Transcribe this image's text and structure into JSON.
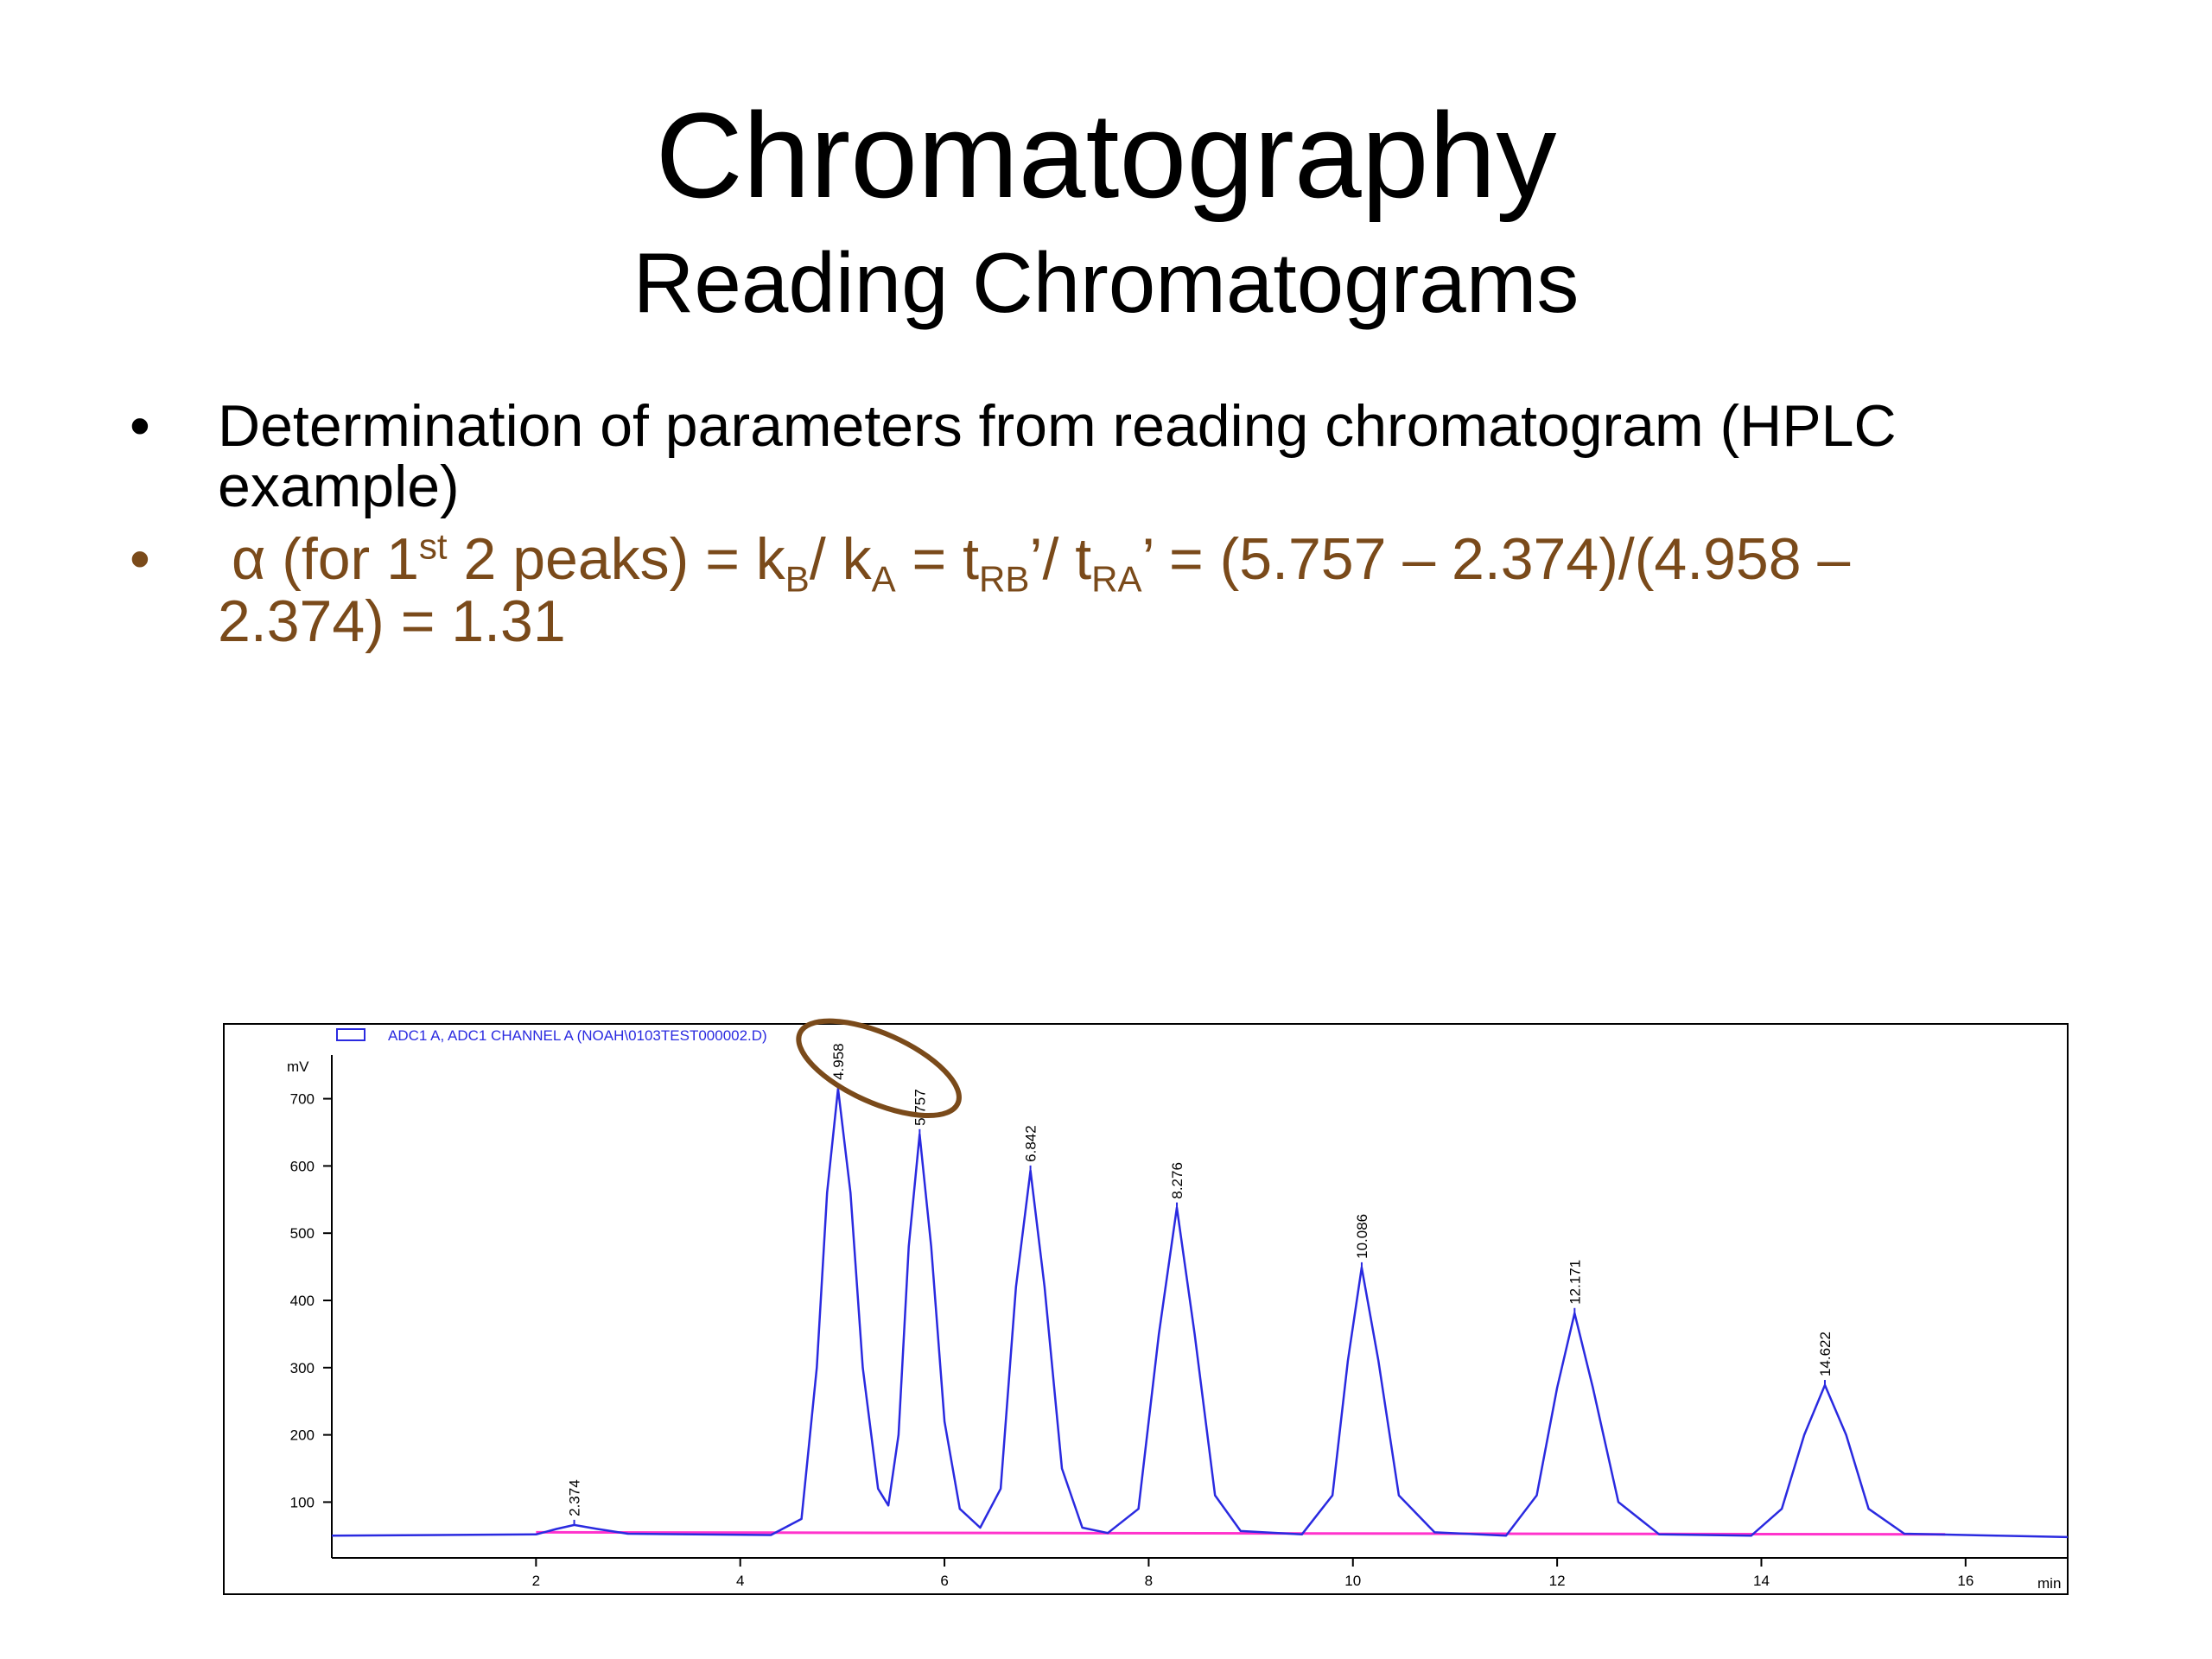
{
  "title": "Chromatography",
  "subtitle": "Reading Chromatograms",
  "bullets": [
    [
      "Determination of parameters from reading chromatogram (HPLC",
      "example)"
    ],
    [
      "α (for 1",
      "st",
      " 2 peaks) = k",
      "B",
      "/ k",
      "A",
      " = t",
      "RB",
      "’/ t",
      "RA",
      "’ = (5.757 – 2.374)/(4.958 –",
      "2.374) = 1.31"
    ]
  ],
  "chart_data": {
    "type": "line",
    "y_unit": "mV",
    "xlabel": "min",
    "xlim": [
      0,
      17
    ],
    "ylim": [
      17,
      765
    ],
    "xticks": [
      2,
      4,
      6,
      8,
      10,
      12,
      14,
      16
    ],
    "yticks": [
      100,
      200,
      300,
      400,
      500,
      600,
      700
    ],
    "series": [
      {
        "name": "ADC1 A, ADC1 CHANNEL A (NOAH\\0103TEST000002.D)",
        "color": "#2a2ae0",
        "x": [
          0,
          2.0,
          2.2,
          2.374,
          2.6,
          2.9,
          4.3,
          4.6,
          4.75,
          4.85,
          4.958,
          5.08,
          5.2,
          5.35,
          5.45,
          5.55,
          5.65,
          5.757,
          5.87,
          6.0,
          6.15,
          6.35,
          6.55,
          6.7,
          6.842,
          6.98,
          7.15,
          7.35,
          7.6,
          7.9,
          8.1,
          8.276,
          8.45,
          8.65,
          8.9,
          9.5,
          9.8,
          9.95,
          10.086,
          10.25,
          10.45,
          10.8,
          11.5,
          11.8,
          12.0,
          12.171,
          12.35,
          12.6,
          13.0,
          13.9,
          14.2,
          14.42,
          14.622,
          14.83,
          15.05,
          15.4,
          17
        ],
        "values": [
          50,
          52,
          60,
          66,
          60,
          53,
          51,
          75,
          300,
          560,
          715,
          560,
          300,
          120,
          95,
          200,
          480,
          647,
          480,
          220,
          90,
          62,
          120,
          420,
          593,
          420,
          150,
          62,
          54,
          90,
          350,
          538,
          350,
          110,
          57,
          52,
          110,
          310,
          449,
          310,
          110,
          55,
          50,
          110,
          270,
          381,
          270,
          100,
          52,
          50,
          90,
          200,
          274,
          200,
          90,
          53,
          48
        ]
      }
    ],
    "baseline": {
      "color": "#ff33cc",
      "x": [
        2.0,
        15.8
      ],
      "values": [
        55,
        52
      ]
    },
    "peaks": {
      "x": [
        2.374,
        4.958,
        5.757,
        6.842,
        8.276,
        10.086,
        12.171,
        14.622
      ],
      "values": [
        66,
        715,
        647,
        593,
        538,
        449,
        381,
        274
      ]
    },
    "highlight_color": "#7a4a1a"
  }
}
